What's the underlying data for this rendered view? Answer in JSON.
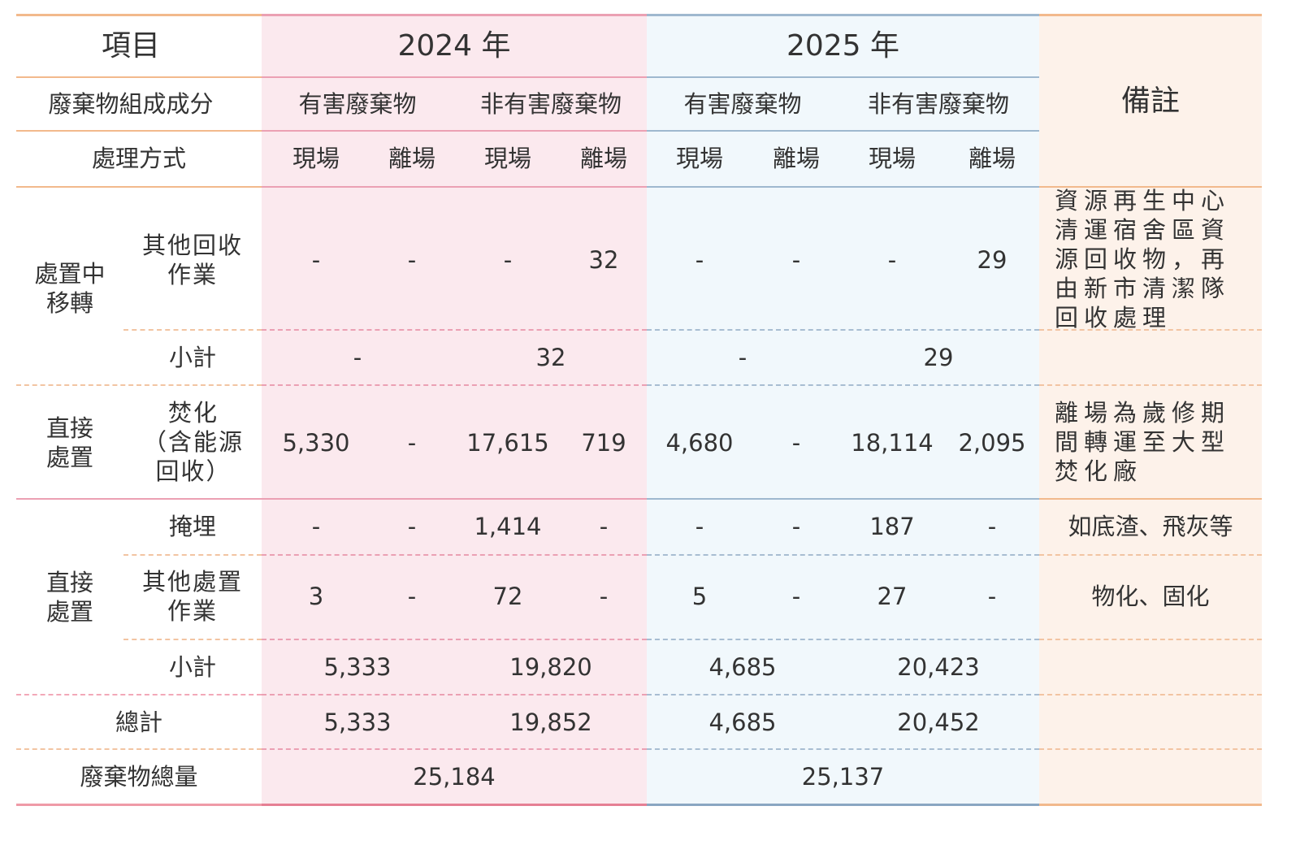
{
  "headers": {
    "item": "項目",
    "year_2024": "2024 年",
    "year_2025": "2025 年",
    "remarks": "備註",
    "composition": "廢棄物組成成分",
    "hazardous": "有害廢棄物",
    "non_hazardous": "非有害廢棄物",
    "treatment": "處理方式",
    "onsite": "現場",
    "offsite": "離場"
  },
  "groups": {
    "transfer": "處置中\n移轉",
    "direct1": "直接\n處置",
    "direct2": "直接\n處置"
  },
  "rows": {
    "other_recycling": {
      "label": "其他回收\n作業",
      "values": [
        "-",
        "-",
        "-",
        "32",
        "-",
        "-",
        "-",
        "29"
      ],
      "note": "資源再生中心清運宿舍區資源回收物，再由新市清潔隊回收處理"
    },
    "subtotal1": {
      "label": "小計",
      "values": [
        "-",
        "32",
        "-",
        "29"
      ]
    },
    "incineration": {
      "label": "焚化\n（含能源\n回收）",
      "values": [
        "5,330",
        "-",
        "17,615",
        "719",
        "4,680",
        "-",
        "18,114",
        "2,095"
      ],
      "note": "離場為歲修期間轉運至大型焚化廠"
    },
    "landfill": {
      "label": "掩埋",
      "values": [
        "-",
        "-",
        "1,414",
        "-",
        "-",
        "-",
        "187",
        "-"
      ],
      "note": "如底渣、飛灰等"
    },
    "other_disposal": {
      "label": "其他處置\n作業",
      "values": [
        "3",
        "-",
        "72",
        "-",
        "5",
        "-",
        "27",
        "-"
      ],
      "note": "物化、固化"
    },
    "subtotal2": {
      "label": "小計",
      "values": [
        "5,333",
        "19,820",
        "4,685",
        "20,423"
      ]
    },
    "total": {
      "label": "總計",
      "values": [
        "5,333",
        "19,852",
        "4,685",
        "20,452"
      ]
    },
    "grand_total": {
      "label": "廢棄物總量",
      "values": [
        "25,184",
        "25,137"
      ]
    }
  },
  "colors": {
    "col_2024_bg": "#fbe9ee",
    "col_2025_bg": "#f1f8fc",
    "col_remarks_bg": "#fdf2ea",
    "line_orange": "#f2b98c",
    "line_pink": "#eba0b3",
    "line_blue": "#9fb8cf",
    "text": "#333333"
  }
}
